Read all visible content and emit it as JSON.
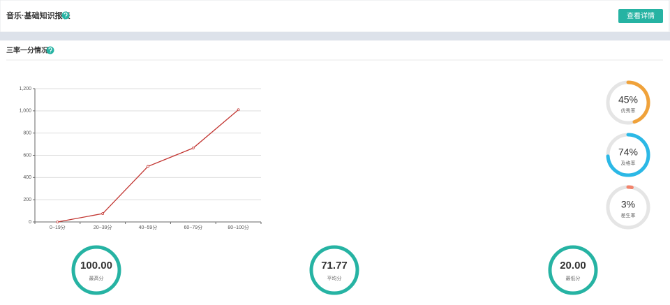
{
  "header": {
    "title": "音乐·基础知识报表",
    "button": "查看详情"
  },
  "section": {
    "title": "三率一分情况"
  },
  "chart_data": {
    "type": "line",
    "categories": [
      "0~19分",
      "20~39分",
      "40~59分",
      "60~79分",
      "80~100分"
    ],
    "series": [
      {
        "color": "#c23531",
        "values": [
          0,
          75,
          500,
          665,
          1010
        ]
      }
    ],
    "ylim": [
      0,
      1200
    ],
    "yticks": [
      0,
      200,
      400,
      600,
      800,
      {
        "value": 1000,
        "label": "1,000"
      },
      {
        "value": 1200,
        "label": "1,200"
      }
    ],
    "grid": true
  },
  "rates": {
    "values": [
      45,
      74,
      3
    ],
    "value_labels": [
      "45%",
      "74%",
      "3%"
    ],
    "names": [
      "优秀率",
      "及格率",
      "差生率"
    ],
    "colors": [
      "#f0a23a",
      "#2bb8e6",
      "#f2836b"
    ]
  },
  "stats": [
    {
      "value": "100.00",
      "label": "最高分"
    },
    {
      "value": "71.77",
      "label": "平均分"
    },
    {
      "value": "20.00",
      "label": "最低分"
    }
  ]
}
